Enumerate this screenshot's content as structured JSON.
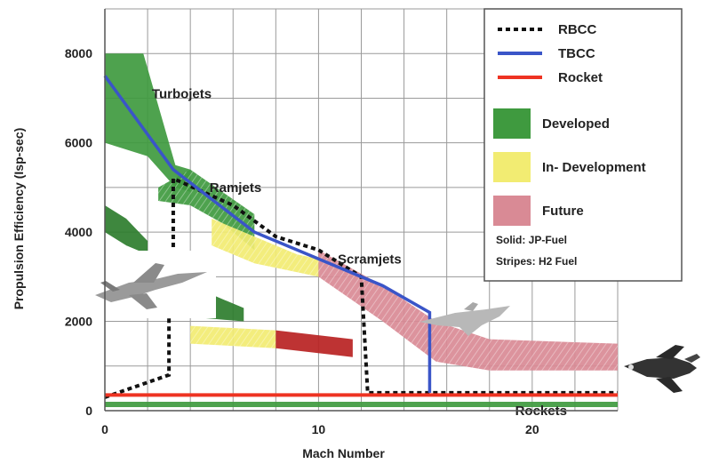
{
  "chart_data": {
    "type": "line",
    "xlabel": "Mach Number",
    "ylabel": "Propulsion Efficiency  (Isp-sec)",
    "xlim": [
      0,
      24
    ],
    "ylim": [
      0,
      9000
    ],
    "xticks": [
      "0",
      "10",
      "20"
    ],
    "xtick_values": [
      0,
      10,
      20
    ],
    "yticks": [
      "0",
      "2000",
      "4000",
      "6000",
      "8000"
    ],
    "ytick_values": [
      0,
      2000,
      4000,
      6000,
      8000
    ],
    "grid": true,
    "legend_position": "top-right",
    "series": [
      {
        "name": "RBCC",
        "color": "#111111",
        "style": "dotted",
        "x": [
          0,
          3,
          3,
          3,
          3,
          3.2,
          3.2,
          6,
          8,
          10,
          12,
          12,
          12.3,
          24
        ],
        "y": [
          300,
          800,
          1600,
          1600,
          3500,
          3500,
          5200,
          4600,
          3900,
          3600,
          3000,
          3000,
          400,
          400
        ]
      },
      {
        "name": "TBCC",
        "color": "#3a55c8",
        "style": "solid",
        "x": [
          0,
          3.2,
          7,
          10,
          13,
          15.2,
          15.2
        ],
        "y": [
          7500,
          5400,
          4000,
          3400,
          2800,
          2200,
          400
        ]
      },
      {
        "name": "Rocket",
        "color": "#ee3322",
        "style": "solid",
        "x": [
          0,
          24
        ],
        "y": [
          350,
          350
        ]
      }
    ],
    "regions": [
      {
        "label": "Turbojets",
        "status": "Developed",
        "fuel": "JP-Fuel",
        "color": "#3f9a3f",
        "upper": [
          [
            0,
            8000
          ],
          [
            1.8,
            8000
          ],
          [
            3.3,
            5500
          ],
          [
            4,
            5400
          ]
        ],
        "lower": [
          [
            0,
            6000
          ],
          [
            2,
            5700
          ],
          [
            3.3,
            5000
          ],
          [
            4,
            4900
          ]
        ]
      },
      {
        "label": "Ramjets",
        "status": "Developed",
        "fuel": "H2 Fuel",
        "color": "#3f9a3f",
        "upper": [
          [
            2.5,
            5000
          ],
          [
            4,
            5400
          ],
          [
            5.5,
            4900
          ],
          [
            7,
            4400
          ]
        ],
        "lower": [
          [
            2.5,
            4700
          ],
          [
            4,
            4600
          ],
          [
            5.5,
            4200
          ],
          [
            7,
            3600
          ]
        ]
      },
      {
        "label": "Ramjets-JP",
        "status": "Developed",
        "fuel": "JP-Fuel",
        "color": "#2e7d2e",
        "upper": [
          [
            0,
            4600
          ],
          [
            1,
            4300
          ],
          [
            2,
            3800
          ]
        ],
        "lower": [
          [
            0,
            4000
          ],
          [
            1,
            3700
          ],
          [
            2,
            3500
          ]
        ]
      },
      {
        "label": "Scramjets",
        "status": "In- Development",
        "fuel": "H2 Fuel",
        "color": "#f2ec72",
        "upper": [
          [
            5,
            4300
          ],
          [
            7,
            3900
          ],
          [
            9,
            3500
          ],
          [
            10,
            3400
          ]
        ],
        "lower": [
          [
            5,
            3700
          ],
          [
            7,
            3300
          ],
          [
            9,
            3100
          ],
          [
            10,
            3000
          ]
        ]
      },
      {
        "label": "Scramjets-future",
        "status": "Future",
        "fuel": "H2 Fuel",
        "color": "#d98a95",
        "upper": [
          [
            10,
            3600
          ],
          [
            13,
            2800
          ],
          [
            15.5,
            2000
          ],
          [
            18,
            1600
          ],
          [
            24,
            1500
          ]
        ],
        "lower": [
          [
            10,
            3000
          ],
          [
            13,
            2000
          ],
          [
            15.5,
            1100
          ],
          [
            18,
            900
          ],
          [
            24,
            900
          ]
        ]
      },
      {
        "label": "Low-speed-JP",
        "status": "Developed",
        "fuel": "JP-Fuel",
        "color": "#2e7d2e",
        "upper": [
          [
            1.5,
            3000
          ],
          [
            5,
            2600
          ],
          [
            6.5,
            2300
          ]
        ],
        "lower": [
          [
            1.5,
            2600
          ],
          [
            4,
            2100
          ],
          [
            6.5,
            2000
          ]
        ]
      },
      {
        "label": "Low-speed-H2",
        "status": "In- Development",
        "fuel": "H2 Fuel",
        "color": "#f2ec72",
        "upper": [
          [
            4,
            1900
          ],
          [
            8,
            1800
          ]
        ],
        "lower": [
          [
            4,
            1500
          ],
          [
            8,
            1400
          ]
        ]
      },
      {
        "label": "Low-speed-red",
        "status": "Future",
        "fuel": "JP-Fuel",
        "color": "#b82222",
        "upper": [
          [
            8,
            1800
          ],
          [
            11.6,
            1600
          ]
        ],
        "lower": [
          [
            8,
            1400
          ],
          [
            11.6,
            1200
          ]
        ]
      },
      {
        "label": "Rockets",
        "status": "Developed",
        "fuel": "JP-Fuel",
        "color": "#3f9a3f",
        "upper": [
          [
            0,
            200
          ],
          [
            24,
            200
          ]
        ],
        "lower": [
          [
            0,
            80
          ],
          [
            24,
            80
          ]
        ]
      }
    ],
    "annotations": [
      {
        "text": "Turbojets",
        "x": 2.2,
        "y": 7000
      },
      {
        "text": "Ramjets",
        "x": 4.9,
        "y": 4900
      },
      {
        "text": "Scramjets",
        "x": 10.9,
        "y": 3300
      },
      {
        "text": "Rockets",
        "x": 19.2,
        "y": -100
      }
    ],
    "legend": {
      "lines": [
        {
          "label": "RBCC",
          "color": "#111111",
          "style": "dotted"
        },
        {
          "label": "TBCC",
          "color": "#3a55c8",
          "style": "solid"
        },
        {
          "label": "Rocket",
          "color": "#ee3322",
          "style": "solid"
        }
      ],
      "areas": [
        {
          "label": "Developed",
          "color": "#3f9a3f"
        },
        {
          "label": "In- Development",
          "color": "#f2ec72"
        },
        {
          "label": "Future",
          "color": "#d98a95"
        }
      ],
      "notes": [
        "Solid: JP-Fuel",
        "Stripes: H2 Fuel"
      ]
    }
  },
  "icons": [
    {
      "name": "fighter-jet-icon",
      "color": "#9a9a9a"
    },
    {
      "name": "hypersonic-vehicle-icon",
      "color": "#b8b8b8"
    },
    {
      "name": "space-shuttle-icon",
      "color": "#333333"
    }
  ]
}
